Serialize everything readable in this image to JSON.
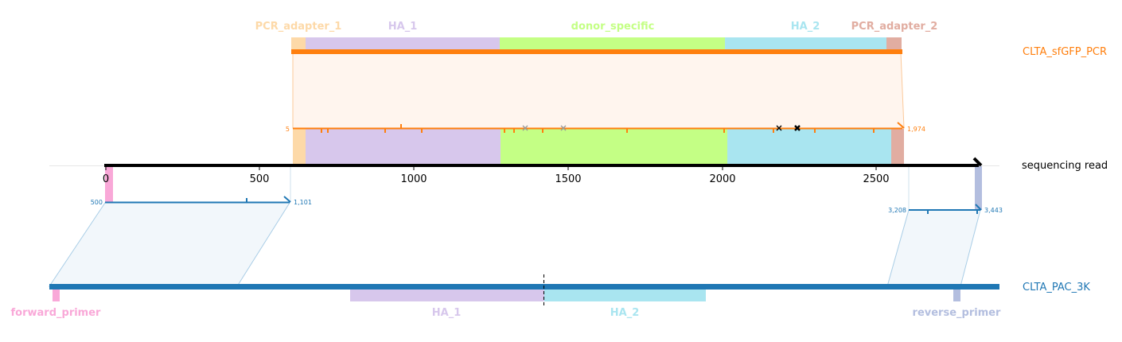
{
  "pcr": {
    "name": "CLTA_sfGFP_PCR",
    "color": "#ff7f0e",
    "start_label": "5",
    "end_label": "1,974",
    "features": [
      {
        "name": "PCR_adapter_1",
        "color": "#fdd9a8"
      },
      {
        "name": "HA_1",
        "color": "#d7c7ec"
      },
      {
        "name": "donor_specific",
        "color": "#c4ff85"
      },
      {
        "name": "HA_2",
        "color": "#a9e5f0"
      },
      {
        "name": "PCR_adapter_2",
        "color": "#e1ada1"
      }
    ]
  },
  "read": {
    "name": "sequencing read",
    "color": "#000000",
    "ticks": [
      "0",
      "500",
      "1000",
      "1500",
      "2000",
      "2500"
    ]
  },
  "ref": {
    "name": "CLTA_PAC_3K",
    "color": "#1f77b4",
    "left_start_label": "500",
    "left_end_label": "1,101",
    "right_start_label": "3,208",
    "right_end_label": "3,443",
    "features": [
      {
        "name": "forward_primer",
        "color": "#f9a8d8"
      },
      {
        "name": "HA_1",
        "color": "#d7c7ec"
      },
      {
        "name": "HA_2",
        "color": "#a9e5f0"
      },
      {
        "name": "reverse_primer",
        "color": "#b3bedf"
      }
    ]
  }
}
